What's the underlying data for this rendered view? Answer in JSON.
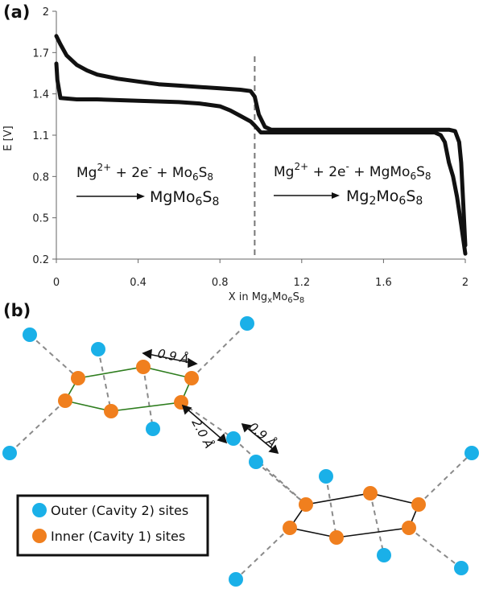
{
  "chart_data": {
    "type": "line",
    "panel_label": "(a)",
    "xlabel_main": "X in Mg",
    "xlabel_sub1": "x",
    "xlabel_mid": "Mo",
    "xlabel_sub2": "6",
    "xlabel_end": "S",
    "xlabel_sub3": "8",
    "ylabel": "E [V]",
    "xlim": [
      0,
      2
    ],
    "ylim": [
      0.2,
      2
    ],
    "x_ticks": [
      "0",
      "0.4",
      "0.8",
      "1.2",
      "1.6",
      "2"
    ],
    "x_tick_values": [
      0,
      0.4,
      0.8,
      1.2,
      1.6,
      2
    ],
    "y_ticks": [
      "2",
      "1.7",
      "1.4",
      "1.1",
      "0.8",
      "0.5",
      "0.2"
    ],
    "y_tick_values": [
      2,
      1.7,
      1.4,
      1.1,
      0.8,
      0.5,
      0.2
    ],
    "grid": false,
    "divider_x": 0.97,
    "series": [
      {
        "points": [
          [
            0.0,
            1.82
          ],
          [
            0.02,
            1.76
          ],
          [
            0.05,
            1.68
          ],
          [
            0.1,
            1.61
          ],
          [
            0.15,
            1.57
          ],
          [
            0.2,
            1.54
          ],
          [
            0.3,
            1.51
          ],
          [
            0.4,
            1.49
          ],
          [
            0.5,
            1.47
          ],
          [
            0.6,
            1.46
          ],
          [
            0.7,
            1.45
          ],
          [
            0.8,
            1.44
          ],
          [
            0.9,
            1.43
          ],
          [
            0.95,
            1.42
          ],
          [
            0.97,
            1.38
          ],
          [
            0.99,
            1.25
          ],
          [
            1.02,
            1.16
          ],
          [
            1.05,
            1.14
          ],
          [
            1.2,
            1.14
          ],
          [
            1.4,
            1.14
          ],
          [
            1.6,
            1.14
          ],
          [
            1.8,
            1.14
          ],
          [
            1.92,
            1.14
          ],
          [
            1.95,
            1.13
          ],
          [
            1.97,
            1.05
          ],
          [
            1.98,
            0.9
          ],
          [
            1.99,
            0.6
          ],
          [
            2.0,
            0.3
          ]
        ]
      },
      {
        "points": [
          [
            0.0,
            1.62
          ],
          [
            0.005,
            1.5
          ],
          [
            0.02,
            1.37
          ],
          [
            0.1,
            1.36
          ],
          [
            0.2,
            1.36
          ],
          [
            0.4,
            1.35
          ],
          [
            0.6,
            1.34
          ],
          [
            0.7,
            1.33
          ],
          [
            0.8,
            1.31
          ],
          [
            0.85,
            1.28
          ],
          [
            0.9,
            1.24
          ],
          [
            0.95,
            1.2
          ],
          [
            0.97,
            1.17
          ],
          [
            1.0,
            1.12
          ],
          [
            1.1,
            1.12
          ],
          [
            1.3,
            1.12
          ],
          [
            1.5,
            1.12
          ],
          [
            1.7,
            1.12
          ],
          [
            1.85,
            1.12
          ],
          [
            1.88,
            1.1
          ],
          [
            1.9,
            1.05
          ],
          [
            1.92,
            0.9
          ],
          [
            1.94,
            0.8
          ],
          [
            1.96,
            0.65
          ],
          [
            1.98,
            0.45
          ],
          [
            2.0,
            0.24
          ]
        ]
      }
    ],
    "reactions": [
      {
        "reactant1": "Mg",
        "reactant1_sup": "2+",
        "plus1": " + 2e",
        "e_sup": "-",
        "plus2": " + Mo",
        "r_sub1": "6",
        "r_S": "S",
        "r_sub2": "8",
        "product": "MgMo",
        "p_sub1": "6",
        "p_S": "S",
        "p_sub2": "8"
      },
      {
        "reactant1": "Mg",
        "reactant1_sup": "2+",
        "plus1": " + 2e",
        "e_sup": "-",
        "plus2": " + MgMo",
        "r_sub1": "6",
        "r_S": "S",
        "r_sub2": "8",
        "product": "Mg",
        "p_mid_sub": "2",
        "p_mo": "Mo",
        "p_sub1": "6",
        "p_S": "S",
        "p_sub2": "8"
      }
    ]
  },
  "panel_b": {
    "label": "(b)",
    "dist_label_1": "0.9 Å",
    "dist_label_2": "2.0 Å",
    "dist_label_3": "0.9 Å",
    "legend": {
      "outer": "Outer (Cavity 2) sites",
      "inner": "Inner (Cavity 1) sites"
    },
    "colors": {
      "outer": "#1ab0e8",
      "inner": "#f07f1e",
      "hex_left": "#2e7d1e",
      "hex_right": "#111111",
      "dashed": "#8a8a8a"
    }
  }
}
